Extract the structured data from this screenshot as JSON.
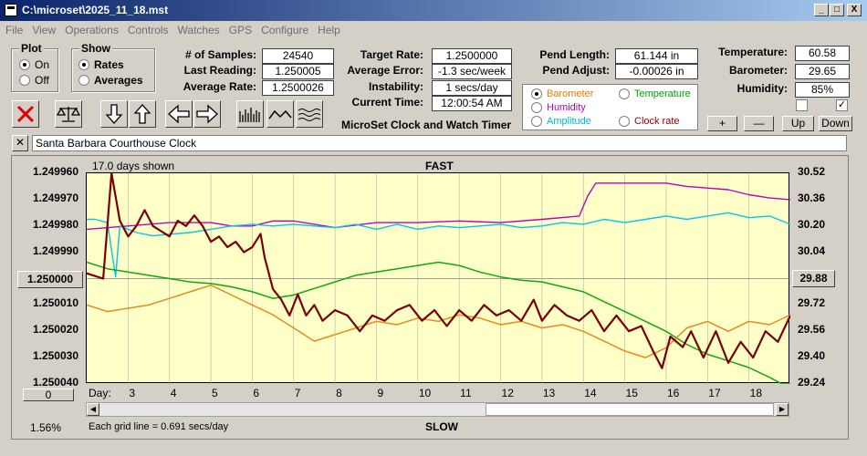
{
  "window": {
    "title": "C:\\microset\\2025_11_18.mst",
    "min_label": "_",
    "max_label": "□",
    "close_label": "X"
  },
  "menu": [
    "File",
    "View",
    "Operations",
    "Controls",
    "Watches",
    "GPS",
    "Configure",
    "Help"
  ],
  "plot_group": {
    "title": "Plot",
    "options": [
      "On",
      "Off"
    ],
    "selected": "On"
  },
  "show_group": {
    "title": "Show",
    "options": [
      "Rates",
      "Averages"
    ],
    "selected": "Rates"
  },
  "stats": {
    "samples_label": "# of Samples:",
    "samples_value": "24540",
    "last_label": "Last Reading:",
    "last_value": "1.250005",
    "avg_label": "Average Rate:",
    "avg_value": "1.2500026"
  },
  "rates": {
    "target_label": "Target Rate:",
    "target_value": "1.2500000",
    "error_label": "Average Error:",
    "error_value": "-1.3 sec/week",
    "instab_label": "Instability:",
    "instab_value": "1 secs/day",
    "time_label": "Current Time:",
    "time_value": "12:00:54 AM"
  },
  "pend": {
    "length_label": "Pend Length:",
    "length_value": "61.144 in",
    "adjust_label": "Pend Adjust:",
    "adjust_value": "-0.00026 in"
  },
  "env": {
    "temp_label": "Temperature:",
    "temp_value": "60.58",
    "baro_label": "Barometer:",
    "baro_value": "29.65",
    "hum_label": "Humidity:",
    "hum_value": "85%",
    "check1": false,
    "check2": true
  },
  "app_title": "MicroSet Clock and Watch Timer",
  "aux_select": {
    "options": [
      {
        "label": "Barometer",
        "color": "#e87a00",
        "selected": true
      },
      {
        "label": "Temperature",
        "color": "#00a000",
        "selected": false
      },
      {
        "label": "Humidity",
        "color": "#c000c0",
        "selected": false
      },
      {
        "label": "Amplitude",
        "color": "#00b8d8",
        "selected": false
      },
      {
        "label": "Clock rate",
        "color": "#8b0000",
        "selected": false
      }
    ]
  },
  "nav_buttons": {
    "plus": "+",
    "minus": "—",
    "up": "Up",
    "down": "Down"
  },
  "clock_name": "Santa Barbara Courthouse Clock",
  "chart_data": {
    "type": "line",
    "title_top": "FAST",
    "title_bottom": "SLOW",
    "days_shown": "17.0 days shown",
    "grid_note": "Each grid line = 0.691 secs/day",
    "left_axis": {
      "ticks": [
        "1.249960",
        "1.249970",
        "1.249980",
        "1.249990",
        "1.250000",
        "1.250010",
        "1.250020",
        "1.250030",
        "1.250040"
      ],
      "center": "1.250000",
      "range": [
        1.24996,
        1.25004
      ]
    },
    "right_axis": {
      "ticks": [
        "30.52",
        "30.36",
        "30.20",
        "30.04",
        "29.88",
        "29.72",
        "29.56",
        "29.40",
        "29.24"
      ],
      "center": "29.88",
      "range": [
        29.24,
        30.52
      ]
    },
    "x_label": "Day:",
    "x_ticks": [
      "3",
      "4",
      "5",
      "6",
      "7",
      "8",
      "9",
      "10",
      "11",
      "12",
      "13",
      "14",
      "15",
      "16",
      "17",
      "18"
    ],
    "x_range": [
      2.0,
      19.0
    ],
    "bottom_left_value": "0",
    "bottom_left_pct": "1.56%",
    "series": [
      {
        "name": "Clock rate",
        "color": "#7a0000",
        "width": 2.2,
        "points": [
          [
            2.0,
            1.249998
          ],
          [
            2.4,
            1.25
          ],
          [
            2.6,
            1.24996
          ],
          [
            2.8,
            1.249978
          ],
          [
            3.0,
            1.249984
          ],
          [
            3.2,
            1.24998
          ],
          [
            3.4,
            1.249974
          ],
          [
            3.6,
            1.24998
          ],
          [
            3.8,
            1.249982
          ],
          [
            4.0,
            1.249984
          ],
          [
            4.2,
            1.249978
          ],
          [
            4.4,
            1.24998
          ],
          [
            4.6,
            1.249976
          ],
          [
            4.8,
            1.24998
          ],
          [
            5.0,
            1.249986
          ],
          [
            5.2,
            1.249984
          ],
          [
            5.4,
            1.249988
          ],
          [
            5.6,
            1.249986
          ],
          [
            5.8,
            1.24999
          ],
          [
            6.0,
            1.249988
          ],
          [
            6.2,
            1.249983
          ],
          [
            6.3,
            1.249992
          ],
          [
            6.5,
            1.250004
          ],
          [
            6.7,
            1.250008
          ],
          [
            6.9,
            1.250014
          ],
          [
            7.1,
            1.250006
          ],
          [
            7.3,
            1.250014
          ],
          [
            7.5,
            1.25001
          ],
          [
            7.7,
            1.250016
          ],
          [
            8.0,
            1.250012
          ],
          [
            8.3,
            1.250014
          ],
          [
            8.6,
            1.25002
          ],
          [
            8.9,
            1.250014
          ],
          [
            9.2,
            1.250016
          ],
          [
            9.5,
            1.250012
          ],
          [
            9.8,
            1.25001
          ],
          [
            10.1,
            1.250016
          ],
          [
            10.4,
            1.250012
          ],
          [
            10.7,
            1.250018
          ],
          [
            11.0,
            1.250012
          ],
          [
            11.3,
            1.250016
          ],
          [
            11.6,
            1.25001
          ],
          [
            11.9,
            1.250014
          ],
          [
            12.2,
            1.250012
          ],
          [
            12.5,
            1.250016
          ],
          [
            12.8,
            1.250008
          ],
          [
            13.0,
            1.250016
          ],
          [
            13.3,
            1.25001
          ],
          [
            13.6,
            1.250014
          ],
          [
            13.9,
            1.250016
          ],
          [
            14.2,
            1.250012
          ],
          [
            14.5,
            1.25002
          ],
          [
            14.8,
            1.250014
          ],
          [
            15.1,
            1.25002
          ],
          [
            15.4,
            1.250018
          ],
          [
            15.7,
            1.250028
          ],
          [
            15.9,
            1.250034
          ],
          [
            16.1,
            1.250022
          ],
          [
            16.4,
            1.250026
          ],
          [
            16.6,
            1.25002
          ],
          [
            16.9,
            1.25003
          ],
          [
            17.2,
            1.25002
          ],
          [
            17.5,
            1.250032
          ],
          [
            17.8,
            1.250024
          ],
          [
            18.1,
            1.25003
          ],
          [
            18.4,
            1.25002
          ],
          [
            18.7,
            1.250024
          ],
          [
            19.0,
            1.250014
          ]
        ]
      },
      {
        "name": "Humidity",
        "color": "#c000c0",
        "width": 1.4,
        "points": [
          [
            2.0,
            30.18
          ],
          [
            3.0,
            30.2
          ],
          [
            4.0,
            30.22
          ],
          [
            5.0,
            30.22
          ],
          [
            5.5,
            30.2
          ],
          [
            6.0,
            30.2
          ],
          [
            6.5,
            30.23
          ],
          [
            7.0,
            30.23
          ],
          [
            8.0,
            30.19
          ],
          [
            9.0,
            30.22
          ],
          [
            10.0,
            30.22
          ],
          [
            11.0,
            30.23
          ],
          [
            12.0,
            30.22
          ],
          [
            13.0,
            30.24
          ],
          [
            13.9,
            30.26
          ],
          [
            14.1,
            30.38
          ],
          [
            14.3,
            30.46
          ],
          [
            15.0,
            30.46
          ],
          [
            16.0,
            30.46
          ],
          [
            16.5,
            30.44
          ],
          [
            17.0,
            30.43
          ],
          [
            17.5,
            30.42
          ],
          [
            18.0,
            30.39
          ],
          [
            18.5,
            30.37
          ],
          [
            19.0,
            30.36
          ]
        ]
      },
      {
        "name": "Amplitude",
        "color": "#00c8e8",
        "width": 1.4,
        "points": [
          [
            2.0,
            30.24
          ],
          [
            2.2,
            30.24
          ],
          [
            2.5,
            30.22
          ],
          [
            2.7,
            29.89
          ],
          [
            2.8,
            30.2
          ],
          [
            3.2,
            30.16
          ],
          [
            3.6,
            30.14
          ],
          [
            4.0,
            30.15
          ],
          [
            4.5,
            30.16
          ],
          [
            5.0,
            30.18
          ],
          [
            5.5,
            30.2
          ],
          [
            6.0,
            30.21
          ],
          [
            6.5,
            30.2
          ],
          [
            7.0,
            30.21
          ],
          [
            7.5,
            30.2
          ],
          [
            8.0,
            30.19
          ],
          [
            8.5,
            30.21
          ],
          [
            9.0,
            30.18
          ],
          [
            9.5,
            30.21
          ],
          [
            10.0,
            30.18
          ],
          [
            10.5,
            30.2
          ],
          [
            11.0,
            30.19
          ],
          [
            11.5,
            30.2
          ],
          [
            12.0,
            30.21
          ],
          [
            12.5,
            30.19
          ],
          [
            13.0,
            30.2
          ],
          [
            13.5,
            30.22
          ],
          [
            14.0,
            30.21
          ],
          [
            14.5,
            30.24
          ],
          [
            15.0,
            30.22
          ],
          [
            15.5,
            30.24
          ],
          [
            16.0,
            30.26
          ],
          [
            16.5,
            30.24
          ],
          [
            17.0,
            30.26
          ],
          [
            17.5,
            30.28
          ],
          [
            18.0,
            30.25
          ],
          [
            18.5,
            30.26
          ],
          [
            19.0,
            30.21
          ]
        ]
      },
      {
        "name": "Temperature",
        "color": "#10a810",
        "width": 1.5,
        "points": [
          [
            2.0,
            29.98
          ],
          [
            2.5,
            29.94
          ],
          [
            3.0,
            29.92
          ],
          [
            3.5,
            29.9
          ],
          [
            4.0,
            29.88
          ],
          [
            4.5,
            29.86
          ],
          [
            5.0,
            29.85
          ],
          [
            5.5,
            29.83
          ],
          [
            6.0,
            29.8
          ],
          [
            6.5,
            29.76
          ],
          [
            7.0,
            29.78
          ],
          [
            7.5,
            29.82
          ],
          [
            8.0,
            29.86
          ],
          [
            8.5,
            29.9
          ],
          [
            9.0,
            29.92
          ],
          [
            9.5,
            29.94
          ],
          [
            10.0,
            29.96
          ],
          [
            10.5,
            29.98
          ],
          [
            11.0,
            29.96
          ],
          [
            11.5,
            29.92
          ],
          [
            12.0,
            29.89
          ],
          [
            12.5,
            29.87
          ],
          [
            13.0,
            29.86
          ],
          [
            13.5,
            29.83
          ],
          [
            14.0,
            29.8
          ],
          [
            14.5,
            29.74
          ],
          [
            15.0,
            29.68
          ],
          [
            15.5,
            29.62
          ],
          [
            16.0,
            29.56
          ],
          [
            16.5,
            29.48
          ],
          [
            17.0,
            29.42
          ],
          [
            17.5,
            29.38
          ],
          [
            18.0,
            29.34
          ],
          [
            18.5,
            29.28
          ],
          [
            18.8,
            29.24
          ],
          [
            19.0,
            29.24
          ]
        ]
      },
      {
        "name": "Barometer",
        "color": "#e88a20",
        "width": 1.5,
        "points": [
          [
            2.0,
            29.72
          ],
          [
            2.5,
            29.68
          ],
          [
            3.0,
            29.7
          ],
          [
            3.5,
            29.72
          ],
          [
            4.0,
            29.76
          ],
          [
            4.5,
            29.8
          ],
          [
            5.0,
            29.84
          ],
          [
            5.5,
            29.78
          ],
          [
            6.0,
            29.72
          ],
          [
            6.5,
            29.66
          ],
          [
            7.0,
            29.58
          ],
          [
            7.5,
            29.5
          ],
          [
            8.0,
            29.54
          ],
          [
            8.5,
            29.58
          ],
          [
            9.0,
            29.62
          ],
          [
            9.5,
            29.6
          ],
          [
            10.0,
            29.64
          ],
          [
            10.5,
            29.62
          ],
          [
            11.0,
            29.66
          ],
          [
            11.5,
            29.64
          ],
          [
            12.0,
            29.6
          ],
          [
            12.5,
            29.62
          ],
          [
            13.0,
            29.58
          ],
          [
            13.5,
            29.6
          ],
          [
            14.0,
            29.56
          ],
          [
            14.5,
            29.5
          ],
          [
            15.0,
            29.44
          ],
          [
            15.5,
            29.4
          ],
          [
            16.0,
            29.46
          ],
          [
            16.5,
            29.58
          ],
          [
            17.0,
            29.62
          ],
          [
            17.5,
            29.56
          ],
          [
            18.0,
            29.62
          ],
          [
            18.5,
            29.6
          ],
          [
            19.0,
            29.66
          ]
        ]
      }
    ]
  }
}
